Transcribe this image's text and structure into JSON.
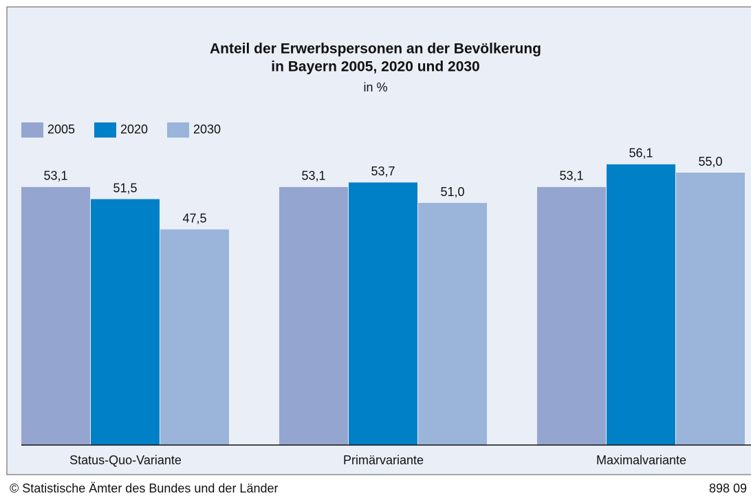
{
  "chart_data": {
    "type": "bar",
    "title": "Anteil der Erwerbspersonen an der Bevölkerung",
    "title_line2": "in Bayern 2005, 2020 und 2030",
    "subtitle": "in %",
    "categories": [
      "Status-Quo-Variante",
      "Primärvariante",
      "Maximalvariante"
    ],
    "series": [
      {
        "name": "2005",
        "color": "#94a6cf",
        "values": [
          53.1,
          53.1,
          53.1
        ],
        "value_labels": [
          "53,1",
          "53,1",
          "53,1"
        ]
      },
      {
        "name": "2020",
        "color": "#0080c6",
        "values": [
          51.5,
          53.7,
          56.1
        ],
        "value_labels": [
          "51,5",
          "53,7",
          "56,1"
        ]
      },
      {
        "name": "2030",
        "color": "#9ab4da",
        "values": [
          47.5,
          51.0,
          55.0
        ],
        "value_labels": [
          "47,5",
          "51,0",
          "55,0"
        ]
      }
    ],
    "ylim": [
      19,
      60
    ],
    "legend": "top-left",
    "source": "© Statistische Ämter des Bundes und der Länder",
    "code": "898 09"
  }
}
